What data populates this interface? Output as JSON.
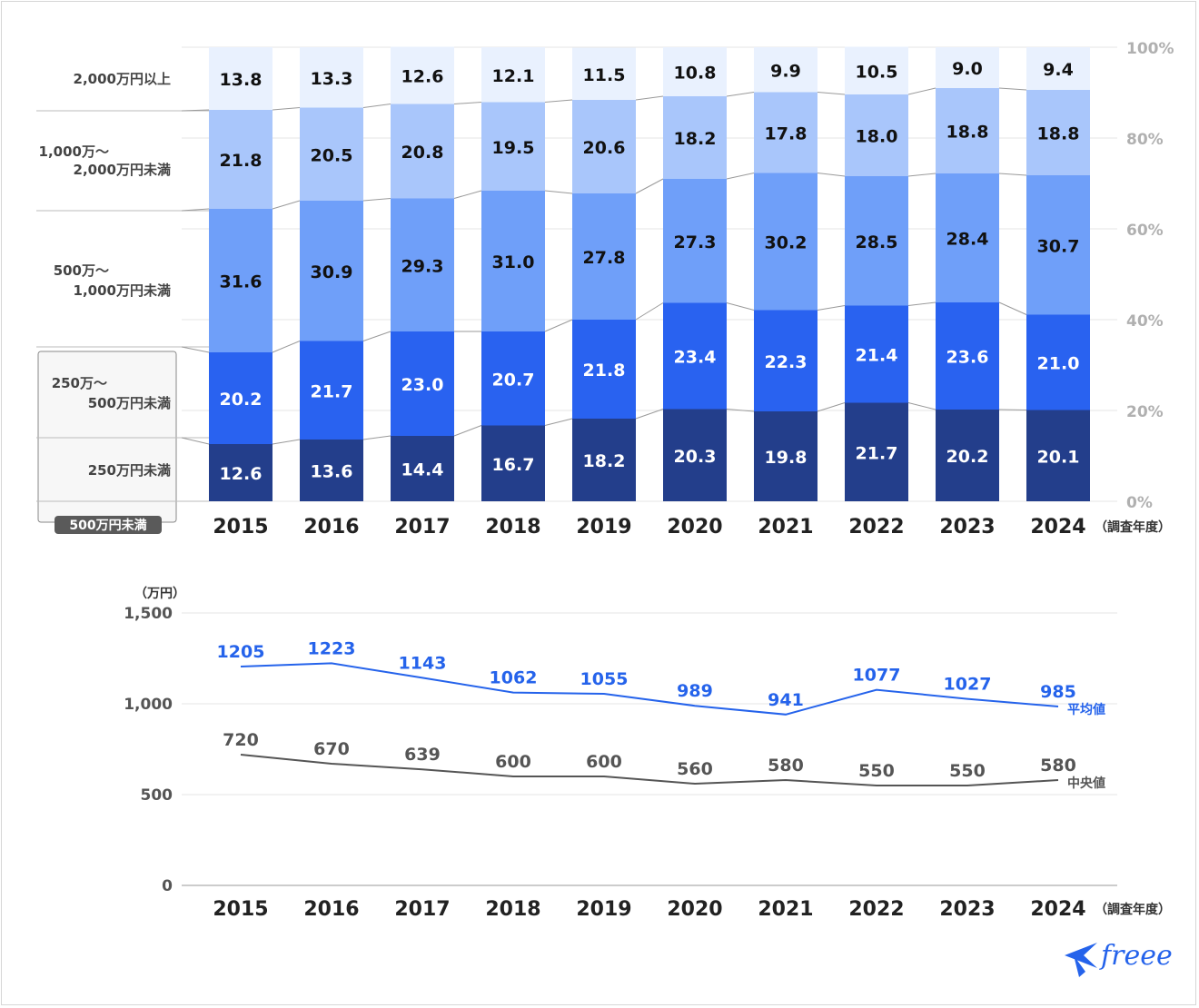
{
  "chart_data": [
    {
      "type": "bar",
      "stacked": true,
      "categories": [
        "2015",
        "2016",
        "2017",
        "2018",
        "2019",
        "2020",
        "2021",
        "2022",
        "2023",
        "2024"
      ],
      "x_unit": "（調査年度）",
      "y_ticks": [
        "0%",
        "20%",
        "40%",
        "60%",
        "80%",
        "100%"
      ],
      "ylim": [
        0,
        100
      ],
      "grid": true,
      "series": [
        {
          "name": "250万円未満",
          "color": "#233e8b",
          "label_color": "#ffffff",
          "values": [
            12.6,
            13.6,
            14.4,
            16.7,
            18.2,
            20.3,
            19.8,
            21.7,
            20.2,
            20.1
          ]
        },
        {
          "name": "250万〜 500万円未満",
          "color": "#2962f0",
          "label_color": "#ffffff",
          "values": [
            20.2,
            21.7,
            23.0,
            20.7,
            21.8,
            23.4,
            22.3,
            21.4,
            23.6,
            21.0
          ]
        },
        {
          "name": "500万〜 1,000万円未満",
          "color": "#6f9ff9",
          "label_color": "#111111",
          "values": [
            31.6,
            30.9,
            29.3,
            31.0,
            27.8,
            27.3,
            30.2,
            28.5,
            28.4,
            30.7
          ]
        },
        {
          "name": "1,000万〜 2,000万円未満",
          "color": "#a9c6fb",
          "label_color": "#111111",
          "values": [
            21.8,
            20.5,
            20.8,
            19.5,
            20.6,
            18.2,
            17.8,
            18.0,
            18.8,
            18.8
          ]
        },
        {
          "name": "2,000万円以上",
          "color": "#e9f1fe",
          "label_color": "#111111",
          "values": [
            13.8,
            13.3,
            12.6,
            12.1,
            11.5,
            10.8,
            9.9,
            10.5,
            9.0,
            9.4
          ]
        }
      ],
      "legend": {
        "top": "2,000万円以上",
        "band4": [
          "1,000万〜",
          "2,000万円未満"
        ],
        "band3": [
          "500万〜",
          "1,000万円未満"
        ],
        "band2": [
          "250万〜",
          "500万円未満"
        ],
        "band1": "250万円未満",
        "group_badge": "500万円未満"
      }
    },
    {
      "type": "line",
      "categories": [
        "2015",
        "2016",
        "2017",
        "2018",
        "2019",
        "2020",
        "2021",
        "2022",
        "2023",
        "2024"
      ],
      "x_unit": "（調査年度）",
      "y_unit": "（万円）",
      "y_ticks": [
        "0",
        "500",
        "1,000",
        "1,500"
      ],
      "ylim": [
        0,
        1500
      ],
      "grid": true,
      "series": [
        {
          "name": "平均値",
          "color": "#2563eb",
          "values": [
            1205,
            1223,
            1143,
            1062,
            1055,
            989,
            941,
            1077,
            1027,
            985
          ]
        },
        {
          "name": "中央値",
          "color": "#555555",
          "values": [
            720,
            670,
            639,
            600,
            600,
            560,
            580,
            550,
            550,
            580
          ]
        }
      ]
    }
  ],
  "brand": {
    "logo_text": "freee",
    "color": "#2563eb"
  }
}
